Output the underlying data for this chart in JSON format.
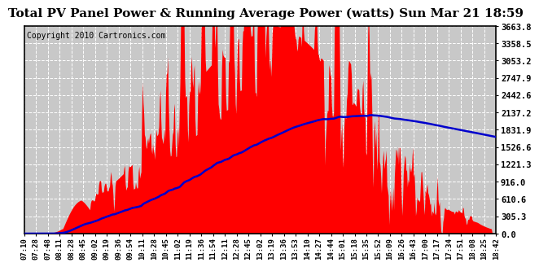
{
  "title": "Total PV Panel Power & Running Average Power (watts) Sun Mar 21 18:59",
  "copyright": "Copyright 2010 Cartronics.com",
  "y_ticks": [
    0.0,
    305.3,
    610.6,
    916.0,
    1221.3,
    1526.6,
    1831.9,
    2137.2,
    2442.6,
    2747.9,
    3053.2,
    3358.5,
    3663.8
  ],
  "y_max": 3663.8,
  "x_labels": [
    "07:10",
    "07:28",
    "07:48",
    "08:11",
    "08:28",
    "08:45",
    "09:02",
    "09:19",
    "09:36",
    "09:54",
    "10:11",
    "10:28",
    "10:45",
    "11:02",
    "11:19",
    "11:36",
    "11:54",
    "12:11",
    "12:28",
    "12:45",
    "13:02",
    "13:19",
    "13:36",
    "13:53",
    "14:10",
    "14:27",
    "14:44",
    "15:01",
    "15:18",
    "15:35",
    "15:52",
    "16:09",
    "16:26",
    "16:43",
    "17:00",
    "17:17",
    "17:34",
    "17:51",
    "18:08",
    "18:25",
    "18:42"
  ],
  "bg_color": "#ffffff",
  "plot_bg_color": "#c8c8c8",
  "grid_color": "#ffffff",
  "fill_color": "#ff0000",
  "line_color": "#0000cc",
  "title_color": "#000000",
  "border_color": "#000000",
  "title_fontsize": 11,
  "copyright_fontsize": 7
}
